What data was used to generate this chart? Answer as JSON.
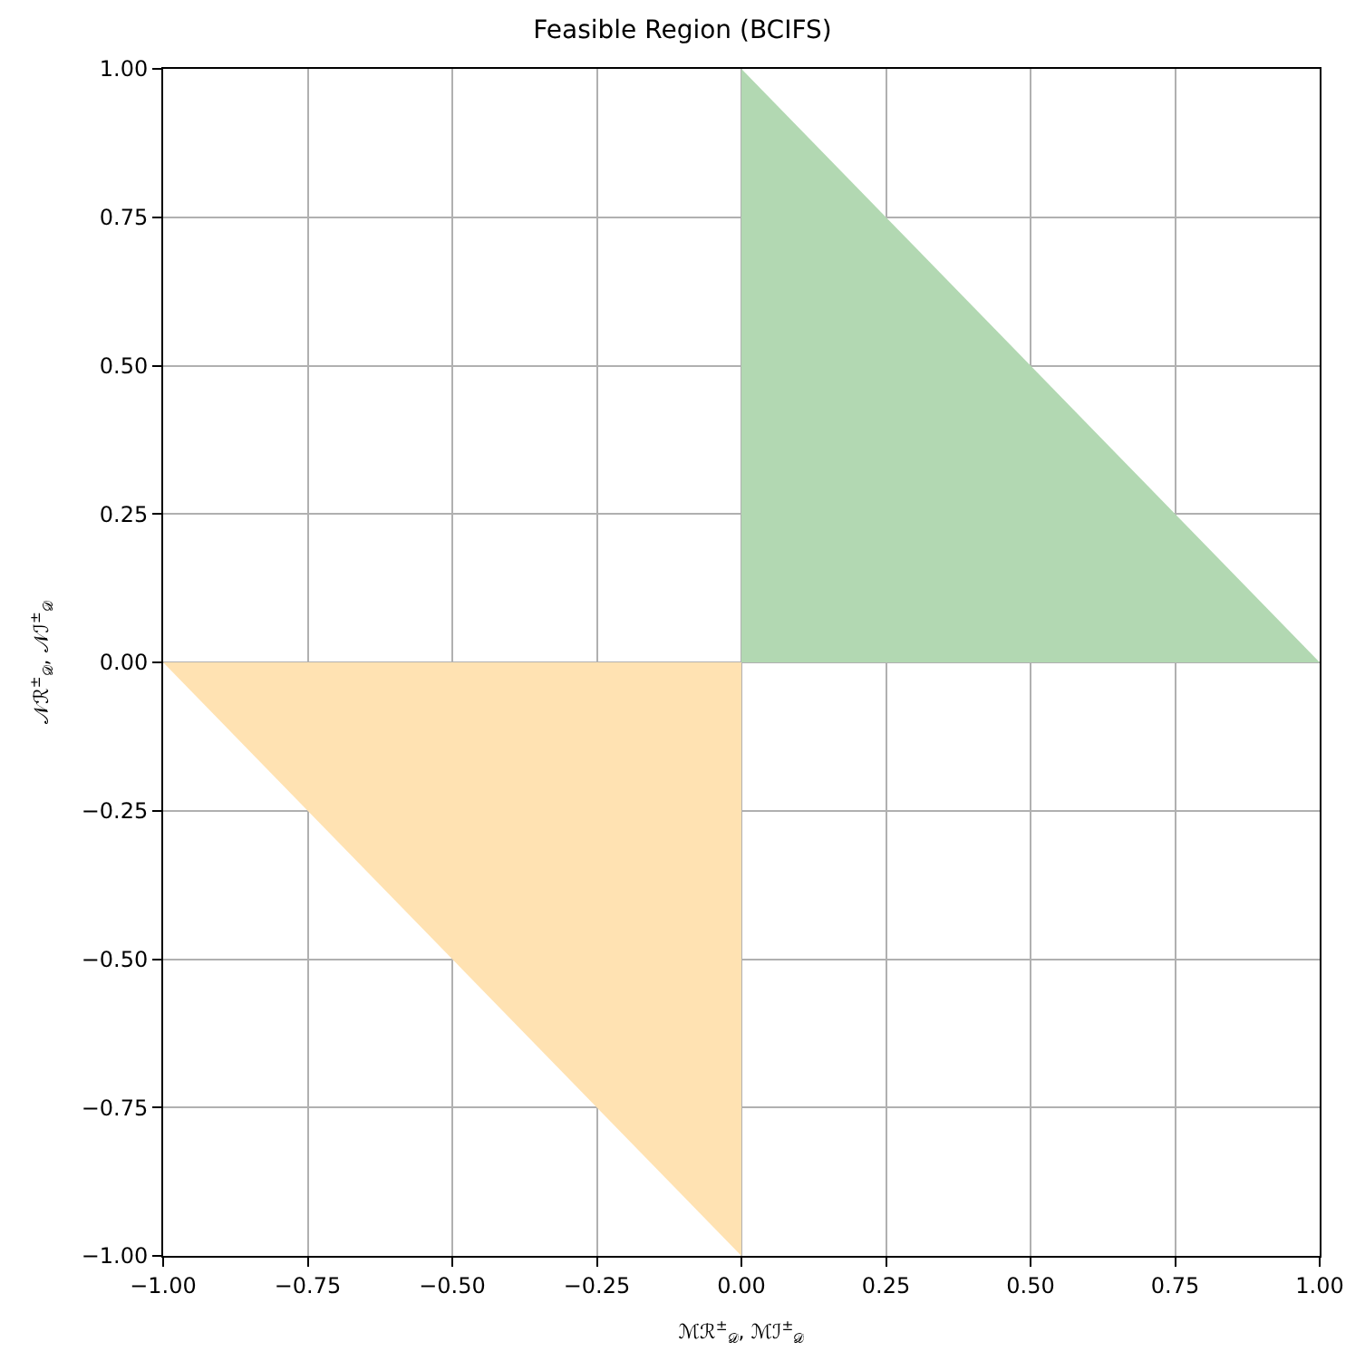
{
  "chart_data": {
    "type": "area",
    "title": "Feasible Region (BCIFS)",
    "xlabel": "ℳℛ$^{±}$$_{𝒟}$, ℳℐ$^{±}$$_{𝒟}$",
    "ylabel": "𝒩ℛ$^{±}$$_{𝒟}$, 𝒩ℐ$^{±}$$_{𝒟}$",
    "series": [
      {
        "color": "#b2d8b2",
        "x": [
          0,
          1
        ],
        "values": [
          1,
          0
        ]
      },
      {
        "color": "#ffe2b2",
        "x": [
          -1,
          0
        ],
        "values": [
          0,
          -1
        ]
      }
    ],
    "xlim": [
      -1,
      1
    ],
    "ylim": [
      -1,
      1
    ],
    "xticks": [
      {
        "value": -1,
        "label": "−1.00"
      },
      {
        "value": -0.75,
        "label": "−0.75"
      },
      {
        "value": -0.5,
        "label": "−0.50"
      },
      {
        "value": -0.25,
        "label": "−0.25"
      },
      {
        "value": 0,
        "label": "0.00"
      },
      {
        "value": 0.25,
        "label": "0.25"
      },
      {
        "value": 0.5,
        "label": "0.50"
      },
      {
        "value": 0.75,
        "label": "0.75"
      },
      {
        "value": 1,
        "label": "1.00"
      }
    ],
    "yticks": [
      {
        "value": -1,
        "label": "−1.00"
      },
      {
        "value": -0.75,
        "label": "−0.75"
      },
      {
        "value": -0.5,
        "label": "−0.50"
      },
      {
        "value": -0.25,
        "label": "−0.25"
      },
      {
        "value": 0,
        "label": "0.00"
      },
      {
        "value": 0.25,
        "label": "0.25"
      },
      {
        "value": 0.5,
        "label": "0.50"
      },
      {
        "value": 0.75,
        "label": "0.75"
      },
      {
        "value": 1,
        "label": "1.00"
      }
    ],
    "grid": true
  }
}
